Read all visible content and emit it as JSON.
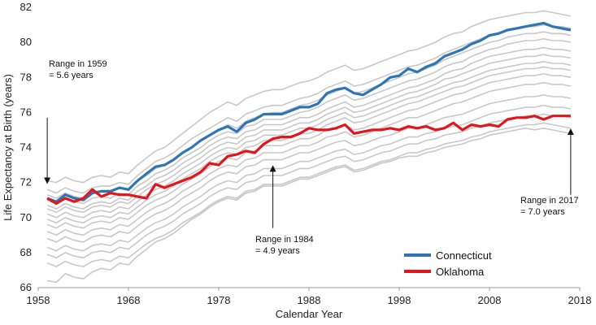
{
  "chart_data": {
    "type": "line",
    "xlabel": "Calendar Year",
    "ylabel": "Life Expectancy at Birth (years)",
    "xlim": [
      1958,
      2018
    ],
    "ylim": [
      66,
      82
    ],
    "x_ticks": [
      1958,
      1968,
      1978,
      1988,
      1998,
      2008,
      2018
    ],
    "y_ticks": [
      66,
      68,
      70,
      72,
      74,
      76,
      78,
      80,
      82
    ],
    "grid": false,
    "legend": {
      "placement": "bottom-center",
      "entries": [
        "Connecticut",
        "Oklahoma"
      ]
    },
    "annotations": [
      {
        "lines": [
          "Range in 1959",
          "= 5.6 years"
        ],
        "x": 1959,
        "arrow_from_y": 75.7,
        "arrow_to_y": 72.1
      },
      {
        "lines": [
          "Range in 1984",
          "= 4.9 years"
        ],
        "x": 1984,
        "arrow_from_y": 69.4,
        "arrow_to_y": 72.8
      },
      {
        "lines": [
          "Range in 2017",
          "= 7.0 years"
        ],
        "x": 2017,
        "arrow_from_y": 71.3,
        "arrow_to_y": 74.9
      }
    ],
    "highlight_series": [
      {
        "name": "Connecticut",
        "color": "#2e75b6",
        "x": [
          1959,
          1960,
          1961,
          1962,
          1963,
          1964,
          1965,
          1966,
          1967,
          1968,
          1969,
          1970,
          1971,
          1972,
          1973,
          1974,
          1975,
          1976,
          1977,
          1978,
          1979,
          1980,
          1981,
          1982,
          1983,
          1984,
          1985,
          1986,
          1987,
          1988,
          1989,
          1990,
          1991,
          1992,
          1993,
          1994,
          1995,
          1996,
          1997,
          1998,
          1999,
          2000,
          2001,
          2002,
          2003,
          2004,
          2005,
          2006,
          2007,
          2008,
          2009,
          2010,
          2011,
          2012,
          2013,
          2014,
          2015,
          2016,
          2017
        ],
        "values": [
          71.1,
          70.9,
          71.3,
          71.1,
          71.0,
          71.4,
          71.5,
          71.5,
          71.7,
          71.6,
          72.1,
          72.5,
          72.9,
          73.0,
          73.3,
          73.7,
          74.0,
          74.4,
          74.7,
          75.0,
          75.2,
          74.9,
          75.4,
          75.6,
          75.9,
          75.9,
          75.9,
          76.1,
          76.3,
          76.3,
          76.5,
          77.1,
          77.3,
          77.4,
          77.1,
          77.0,
          77.3,
          77.6,
          78.0,
          78.1,
          78.5,
          78.3,
          78.6,
          78.8,
          79.2,
          79.4,
          79.6,
          79.9,
          80.1,
          80.4,
          80.5,
          80.7,
          80.8,
          80.9,
          81.0,
          81.1,
          80.9,
          80.8,
          80.7
        ]
      },
      {
        "name": "Oklahoma",
        "color": "#e0161c",
        "x": [
          1959,
          1960,
          1961,
          1962,
          1963,
          1964,
          1965,
          1966,
          1967,
          1968,
          1969,
          1970,
          1971,
          1972,
          1973,
          1974,
          1975,
          1976,
          1977,
          1978,
          1979,
          1980,
          1981,
          1982,
          1983,
          1984,
          1985,
          1986,
          1987,
          1988,
          1989,
          1990,
          1991,
          1992,
          1993,
          1994,
          1995,
          1996,
          1997,
          1998,
          1999,
          2000,
          2001,
          2002,
          2003,
          2004,
          2005,
          2006,
          2007,
          2008,
          2009,
          2010,
          2011,
          2012,
          2013,
          2014,
          2015,
          2016,
          2017
        ],
        "values": [
          71.1,
          70.8,
          71.1,
          70.9,
          71.1,
          71.6,
          71.2,
          71.4,
          71.3,
          71.3,
          71.2,
          71.1,
          71.9,
          71.7,
          71.9,
          72.1,
          72.3,
          72.6,
          73.1,
          73.0,
          73.5,
          73.6,
          73.8,
          73.7,
          74.2,
          74.5,
          74.6,
          74.6,
          74.8,
          75.1,
          75.0,
          75.0,
          75.1,
          75.3,
          74.8,
          74.9,
          75.0,
          75.0,
          75.1,
          75.0,
          75.2,
          75.1,
          75.2,
          75.0,
          75.1,
          75.4,
          75.0,
          75.3,
          75.2,
          75.3,
          75.2,
          75.6,
          75.7,
          75.7,
          75.8,
          75.6,
          75.8,
          75.8,
          75.8
        ]
      }
    ],
    "background_series": {
      "color": "#c8c8c8",
      "x_start": 1959,
      "series": [
        [
          72.1,
          72.0,
          72.3,
          72.1,
          72.0,
          72.3,
          72.4,
          72.3,
          72.6,
          72.5,
          73.0,
          73.4,
          73.8,
          74.0,
          74.4,
          74.8,
          75.2,
          75.6,
          76.0,
          76.3,
          76.6,
          76.4,
          76.8,
          77.0,
          77.2,
          77.3,
          77.3,
          77.5,
          77.7,
          77.8,
          78.0,
          78.3,
          78.5,
          78.7,
          78.4,
          78.5,
          78.7,
          78.9,
          79.1,
          79.3,
          79.5,
          79.6,
          79.8,
          80.0,
          80.3,
          80.5,
          80.6,
          80.9,
          81.1,
          81.3,
          81.4,
          81.5,
          81.6,
          81.7,
          81.7,
          81.8,
          81.7,
          81.6,
          81.5
        ],
        [
          71.6,
          71.4,
          71.7,
          71.5,
          71.4,
          71.7,
          71.8,
          71.8,
          72.0,
          71.9,
          72.4,
          72.8,
          73.2,
          73.4,
          73.7,
          74.1,
          74.5,
          74.8,
          75.1,
          75.4,
          75.7,
          75.5,
          75.9,
          76.1,
          76.3,
          76.4,
          76.4,
          76.6,
          76.8,
          76.9,
          77.1,
          77.4,
          77.6,
          77.8,
          77.5,
          77.6,
          77.8,
          78.0,
          78.2,
          78.4,
          78.6,
          78.7,
          78.9,
          79.1,
          79.4,
          79.6,
          79.8,
          80.0,
          80.2,
          80.4,
          80.5,
          80.7,
          80.8,
          80.9,
          80.9,
          81.0,
          80.9,
          80.9,
          80.8
        ],
        [
          71.3,
          71.1,
          71.4,
          71.2,
          71.1,
          71.4,
          71.5,
          71.4,
          71.7,
          71.6,
          72.1,
          72.4,
          72.8,
          73.0,
          73.3,
          73.7,
          74.0,
          74.4,
          74.7,
          75.0,
          75.3,
          75.1,
          75.5,
          75.7,
          75.9,
          76.0,
          76.0,
          76.2,
          76.4,
          76.5,
          76.7,
          77.0,
          77.2,
          77.4,
          77.1,
          77.2,
          77.4,
          77.6,
          77.8,
          78.0,
          78.2,
          78.3,
          78.5,
          78.7,
          79.0,
          79.2,
          79.4,
          79.6,
          79.8,
          80.0,
          80.1,
          80.3,
          80.4,
          80.5,
          80.5,
          80.6,
          80.5,
          80.5,
          80.4
        ],
        [
          71.0,
          70.8,
          71.1,
          70.9,
          70.8,
          71.1,
          71.2,
          71.1,
          71.4,
          71.3,
          71.8,
          72.1,
          72.5,
          72.7,
          73.0,
          73.4,
          73.7,
          74.0,
          74.4,
          74.7,
          74.9,
          74.8,
          75.2,
          75.3,
          75.6,
          75.6,
          75.6,
          75.8,
          76.0,
          76.1,
          76.3,
          76.6,
          76.8,
          77.0,
          76.7,
          76.8,
          77.0,
          77.2,
          77.4,
          77.6,
          77.8,
          77.9,
          78.1,
          78.3,
          78.6,
          78.8,
          78.9,
          79.2,
          79.4,
          79.6,
          79.7,
          79.9,
          80.0,
          80.1,
          80.1,
          80.2,
          80.1,
          80.1,
          80.0
        ],
        [
          70.7,
          70.5,
          70.8,
          70.6,
          70.5,
          70.8,
          70.9,
          70.8,
          71.1,
          71.0,
          71.5,
          71.8,
          72.2,
          72.4,
          72.7,
          73.1,
          73.4,
          73.7,
          74.1,
          74.4,
          74.6,
          74.5,
          74.9,
          75.0,
          75.3,
          75.3,
          75.3,
          75.5,
          75.7,
          75.7,
          75.9,
          76.2,
          76.4,
          76.6,
          76.3,
          76.4,
          76.6,
          76.8,
          77.0,
          77.2,
          77.4,
          77.5,
          77.7,
          77.9,
          78.2,
          78.4,
          78.5,
          78.8,
          79.0,
          79.2,
          79.3,
          79.4,
          79.5,
          79.6,
          79.6,
          79.7,
          79.6,
          79.6,
          79.5
        ],
        [
          70.5,
          70.3,
          70.6,
          70.4,
          70.3,
          70.6,
          70.7,
          70.6,
          70.9,
          70.8,
          71.2,
          71.6,
          71.9,
          72.1,
          72.4,
          72.8,
          73.1,
          73.4,
          73.8,
          74.1,
          74.3,
          74.2,
          74.6,
          74.7,
          75.0,
          75.0,
          75.0,
          75.2,
          75.4,
          75.4,
          75.6,
          75.9,
          76.1,
          76.3,
          76.0,
          76.1,
          76.3,
          76.5,
          76.7,
          76.9,
          77.1,
          77.2,
          77.4,
          77.6,
          77.9,
          78.0,
          78.2,
          78.4,
          78.6,
          78.8,
          78.9,
          79.0,
          79.1,
          79.2,
          79.2,
          79.3,
          79.2,
          79.2,
          79.1
        ],
        [
          70.2,
          70.0,
          70.3,
          70.1,
          70.0,
          70.3,
          70.4,
          70.3,
          70.6,
          70.5,
          70.9,
          71.3,
          71.6,
          71.8,
          72.1,
          72.5,
          72.8,
          73.1,
          73.5,
          73.8,
          74.0,
          73.9,
          74.3,
          74.4,
          74.7,
          74.7,
          74.7,
          74.9,
          75.1,
          75.1,
          75.3,
          75.6,
          75.8,
          76.0,
          75.7,
          75.8,
          76.0,
          76.2,
          76.4,
          76.6,
          76.8,
          76.9,
          77.1,
          77.3,
          77.5,
          77.7,
          77.8,
          78.0,
          78.2,
          78.4,
          78.5,
          78.6,
          78.7,
          78.8,
          78.8,
          78.9,
          78.8,
          78.8,
          78.7
        ],
        [
          69.9,
          69.7,
          70.0,
          69.8,
          69.7,
          70.0,
          70.1,
          70.0,
          70.3,
          70.2,
          70.6,
          71.0,
          71.3,
          71.5,
          71.8,
          72.2,
          72.5,
          72.8,
          73.2,
          73.5,
          73.7,
          73.6,
          74.0,
          74.1,
          74.4,
          74.4,
          74.4,
          74.6,
          74.8,
          74.8,
          75.0,
          75.3,
          75.5,
          75.7,
          75.4,
          75.5,
          75.7,
          75.9,
          76.1,
          76.3,
          76.5,
          76.6,
          76.8,
          77.0,
          77.2,
          77.4,
          77.5,
          77.7,
          77.9,
          78.1,
          78.2,
          78.3,
          78.4,
          78.5,
          78.5,
          78.6,
          78.5,
          78.5,
          78.4
        ],
        [
          69.6,
          69.4,
          69.7,
          69.5,
          69.4,
          69.7,
          69.8,
          69.7,
          70.0,
          69.9,
          70.3,
          70.7,
          71.0,
          71.2,
          71.5,
          71.9,
          72.2,
          72.5,
          72.9,
          73.2,
          73.4,
          73.3,
          73.7,
          73.8,
          74.1,
          74.1,
          74.1,
          74.3,
          74.5,
          74.5,
          74.7,
          75.0,
          75.1,
          75.3,
          75.0,
          75.1,
          75.3,
          75.5,
          75.7,
          75.9,
          76.1,
          76.2,
          76.4,
          76.6,
          76.8,
          77.0,
          77.1,
          77.3,
          77.5,
          77.7,
          77.8,
          77.9,
          78.0,
          78.1,
          78.1,
          78.2,
          78.1,
          78.1,
          78.0
        ],
        [
          69.2,
          69.0,
          69.3,
          69.1,
          69.0,
          69.3,
          69.4,
          69.3,
          69.6,
          69.5,
          69.9,
          70.3,
          70.6,
          70.8,
          71.1,
          71.5,
          71.8,
          72.1,
          72.5,
          72.8,
          73.0,
          72.9,
          73.3,
          73.4,
          73.7,
          73.7,
          73.7,
          73.9,
          74.1,
          74.1,
          74.3,
          74.6,
          74.7,
          74.9,
          74.6,
          74.7,
          74.9,
          75.1,
          75.3,
          75.5,
          75.7,
          75.7,
          75.9,
          76.1,
          76.3,
          76.5,
          76.6,
          76.8,
          77.0,
          77.2,
          77.3,
          77.4,
          77.5,
          77.6,
          77.6,
          77.7,
          77.6,
          77.6,
          77.5
        ],
        [
          68.8,
          68.6,
          68.9,
          68.7,
          68.6,
          68.9,
          69.0,
          68.9,
          69.2,
          69.1,
          69.5,
          69.9,
          70.2,
          70.4,
          70.7,
          71.1,
          71.4,
          71.7,
          72.1,
          72.4,
          72.6,
          72.5,
          72.9,
          73.0,
          73.3,
          73.3,
          73.3,
          73.5,
          73.7,
          73.7,
          73.9,
          74.1,
          74.3,
          74.4,
          74.1,
          74.2,
          74.4,
          74.6,
          74.7,
          74.9,
          75.1,
          75.1,
          75.3,
          75.5,
          75.7,
          75.8,
          75.9,
          76.1,
          76.3,
          76.5,
          76.6,
          76.7,
          76.8,
          76.9,
          76.9,
          77.0,
          76.9,
          76.9,
          76.8
        ],
        [
          68.3,
          68.1,
          68.4,
          68.2,
          68.1,
          68.4,
          68.5,
          68.4,
          68.7,
          68.6,
          69.0,
          69.4,
          69.7,
          69.9,
          70.2,
          70.6,
          70.9,
          71.2,
          71.6,
          71.9,
          72.1,
          72.0,
          72.4,
          72.5,
          72.8,
          72.8,
          72.8,
          73.0,
          73.2,
          73.2,
          73.4,
          73.6,
          73.8,
          73.9,
          73.6,
          73.7,
          73.9,
          74.1,
          74.2,
          74.4,
          74.6,
          74.6,
          74.8,
          74.9,
          75.1,
          75.2,
          75.3,
          75.5,
          75.7,
          75.9,
          76.0,
          76.1,
          76.2,
          76.3,
          76.3,
          76.4,
          76.3,
          76.3,
          76.2
        ],
        [
          67.9,
          67.7,
          68.0,
          67.8,
          67.7,
          68.0,
          68.1,
          68.0,
          68.3,
          68.2,
          68.6,
          69.0,
          69.3,
          69.5,
          69.8,
          70.2,
          70.5,
          70.8,
          71.2,
          71.5,
          71.7,
          71.6,
          72.0,
          72.1,
          72.4,
          72.4,
          72.4,
          72.6,
          72.8,
          72.8,
          73.0,
          73.2,
          73.4,
          73.5,
          73.2,
          73.3,
          73.5,
          73.7,
          73.8,
          74.0,
          74.2,
          74.2,
          74.4,
          74.5,
          74.7,
          74.8,
          74.9,
          75.1,
          75.2,
          75.4,
          75.5,
          75.6,
          75.7,
          75.8,
          75.8,
          75.9,
          75.8,
          75.8,
          75.7
        ],
        [
          67.4,
          67.2,
          67.5,
          67.3,
          67.2,
          67.5,
          67.6,
          67.5,
          67.8,
          67.7,
          68.1,
          68.5,
          68.8,
          69.0,
          69.3,
          69.7,
          70.0,
          70.3,
          70.7,
          71.0,
          71.2,
          71.1,
          71.5,
          71.6,
          71.9,
          71.9,
          71.9,
          72.1,
          72.3,
          72.3,
          72.5,
          72.7,
          72.9,
          73.0,
          72.7,
          72.8,
          73.0,
          73.2,
          73.3,
          73.5,
          73.7,
          73.7,
          73.9,
          74.0,
          74.2,
          74.3,
          74.4,
          74.6,
          74.7,
          74.9,
          75.0,
          75.1,
          75.2,
          75.3,
          75.3,
          75.4,
          75.3,
          75.2,
          75.1
        ],
        [
          66.4,
          66.3,
          66.8,
          66.6,
          66.5,
          66.9,
          67.1,
          67.0,
          67.4,
          67.3,
          67.8,
          68.2,
          68.6,
          68.8,
          69.1,
          69.5,
          69.9,
          70.2,
          70.6,
          70.9,
          71.1,
          71.0,
          71.4,
          71.5,
          71.8,
          71.8,
          71.8,
          72.0,
          72.2,
          72.2,
          72.4,
          72.6,
          72.8,
          72.9,
          72.6,
          72.7,
          72.9,
          73.1,
          73.2,
          73.4,
          73.5,
          73.5,
          73.7,
          73.8,
          74.0,
          74.1,
          74.2,
          74.4,
          74.5,
          74.7,
          74.8,
          74.9,
          75.0,
          75.1,
          75.0,
          75.1,
          75.0,
          74.9,
          74.8
        ]
      ]
    }
  }
}
